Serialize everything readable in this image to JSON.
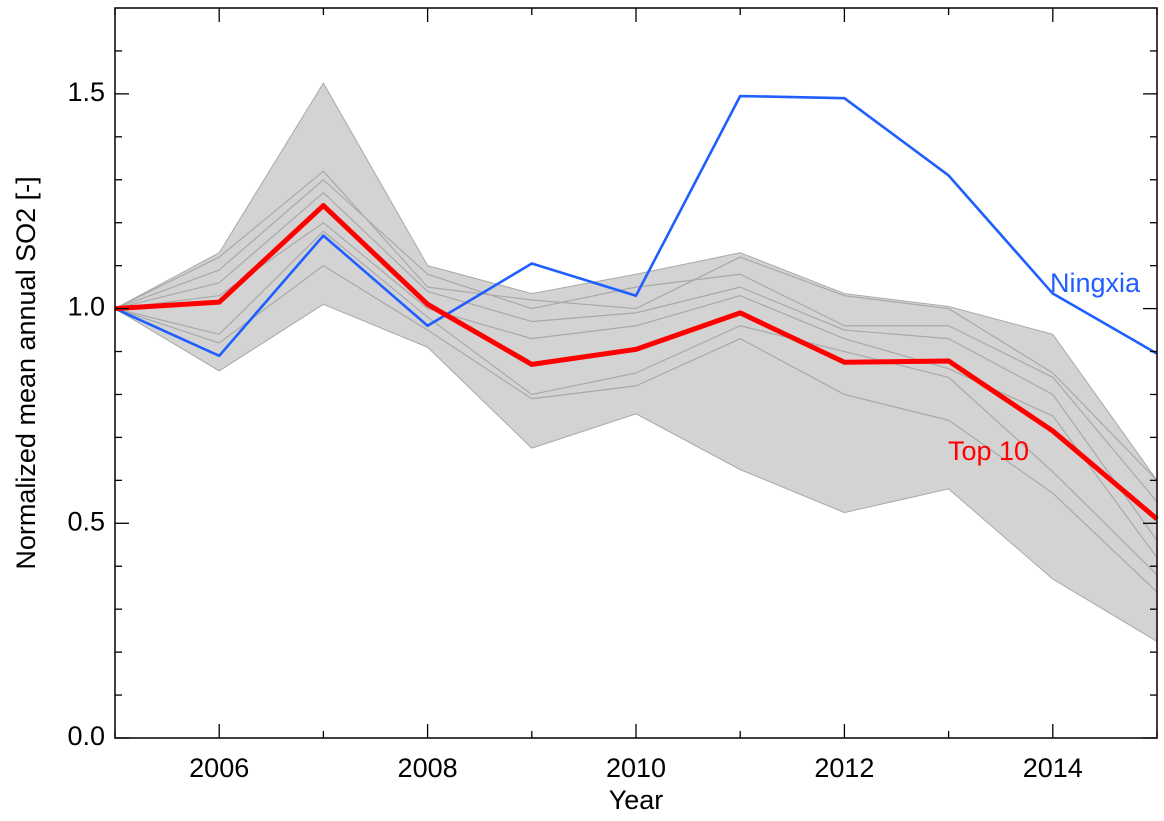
{
  "chart_data": {
    "type": "line",
    "x_label": "Year",
    "y_label": "Normalized mean annual SO2 [-]",
    "x": [
      2005,
      2006,
      2007,
      2008,
      2009,
      2010,
      2011,
      2012,
      2013,
      2014,
      2015
    ],
    "xlim": [
      2005,
      2015
    ],
    "xticks": [
      2006,
      2008,
      2010,
      2012,
      2014
    ],
    "x_minor_ticks": [
      2005,
      2007,
      2009,
      2011,
      2013,
      2015
    ],
    "ylim": [
      0,
      1.7
    ],
    "yticks": [
      {
        "value": 0,
        "label": "0.0"
      },
      0.5,
      {
        "value": 1,
        "label": "1.0"
      },
      1.5
    ],
    "y_minor_ticks": [
      0.1,
      0.2,
      0.3,
      0.4,
      0.6,
      0.7,
      0.8,
      0.9,
      1.1,
      1.2,
      1.3,
      1.4,
      1.6
    ],
    "band": {
      "color": "#d3d3d3",
      "upper": [
        1.0,
        1.13,
        1.525,
        1.1,
        1.035,
        1.08,
        1.13,
        1.035,
        1.005,
        0.94,
        0.6
      ],
      "lower": [
        1.0,
        0.855,
        1.01,
        0.91,
        0.675,
        0.755,
        0.625,
        0.525,
        0.58,
        0.37,
        0.225
      ]
    },
    "series": [
      {
        "color": "#a9a9a9",
        "values": [
          1.0,
          1.12,
          1.32,
          1.05,
          1.02,
          1.0,
          1.12,
          1.03,
          1.0,
          0.85,
          0.6
        ]
      },
      {
        "color": "#a9a9a9",
        "values": [
          1.0,
          1.09,
          1.3,
          1.08,
          1.0,
          1.05,
          1.08,
          0.96,
          0.96,
          0.84,
          0.55
        ]
      },
      {
        "color": "#a9a9a9",
        "values": [
          1.0,
          1.06,
          1.27,
          1.04,
          0.97,
          0.99,
          1.05,
          0.95,
          0.93,
          0.8,
          0.46
        ]
      },
      {
        "color": "#a9a9a9",
        "values": [
          1.0,
          1.03,
          1.2,
          1.0,
          0.93,
          0.96,
          1.03,
          0.93,
          0.86,
          0.75,
          0.42
        ]
      },
      {
        "color": "#a9a9a9",
        "values": [
          1.0,
          0.94,
          1.18,
          0.98,
          0.8,
          0.85,
          0.96,
          0.9,
          0.84,
          0.62,
          0.38
        ]
      },
      {
        "color": "#a9a9a9",
        "values": [
          1.0,
          0.92,
          1.1,
          0.95,
          0.79,
          0.82,
          0.93,
          0.8,
          0.74,
          0.57,
          0.34
        ]
      },
      {
        "name": "Ningxia",
        "color": "#1f5fff",
        "values": [
          1.0,
          0.89,
          1.17,
          0.96,
          1.105,
          1.03,
          1.495,
          1.49,
          1.31,
          1.035,
          0.895
        ]
      },
      {
        "name": "Top 10",
        "color": "#ff0000",
        "values": [
          1.0,
          1.015,
          1.24,
          1.01,
          0.87,
          0.905,
          0.99,
          0.875,
          0.878,
          0.715,
          0.51
        ]
      }
    ]
  }
}
